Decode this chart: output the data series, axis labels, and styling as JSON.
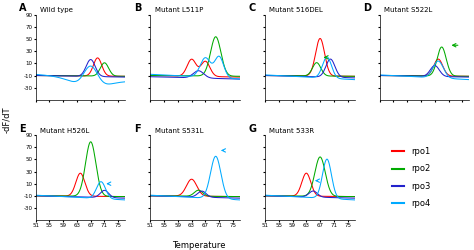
{
  "panels": [
    {
      "label": "A",
      "title": "Wild type"
    },
    {
      "label": "B",
      "title": "Mutant L511P"
    },
    {
      "label": "C",
      "title": "Mutant 516DEL"
    },
    {
      "label": "D",
      "title": "Mutant S522L"
    },
    {
      "label": "E",
      "title": "Mutant H526L"
    },
    {
      "label": "F",
      "title": "Mutant S531L"
    },
    {
      "label": "G",
      "title": "Mutant 533R"
    }
  ],
  "colors": {
    "rpo1": "#ff0000",
    "rpo2": "#00aa00",
    "rpo3": "#2222cc",
    "rpo4": "#00aaff"
  },
  "xlim": [
    51,
    77
  ],
  "ylim": [
    -50,
    90
  ],
  "xticks": [
    51,
    55,
    59,
    63,
    67,
    71,
    75
  ],
  "yticks": [
    -30,
    -10,
    10,
    30,
    50,
    70,
    90
  ],
  "xlabel": "Temperature",
  "ylabel": "-dF/dT",
  "legend_labels": [
    "rpo1",
    "rpo2",
    "rpo3",
    "rpo4"
  ]
}
